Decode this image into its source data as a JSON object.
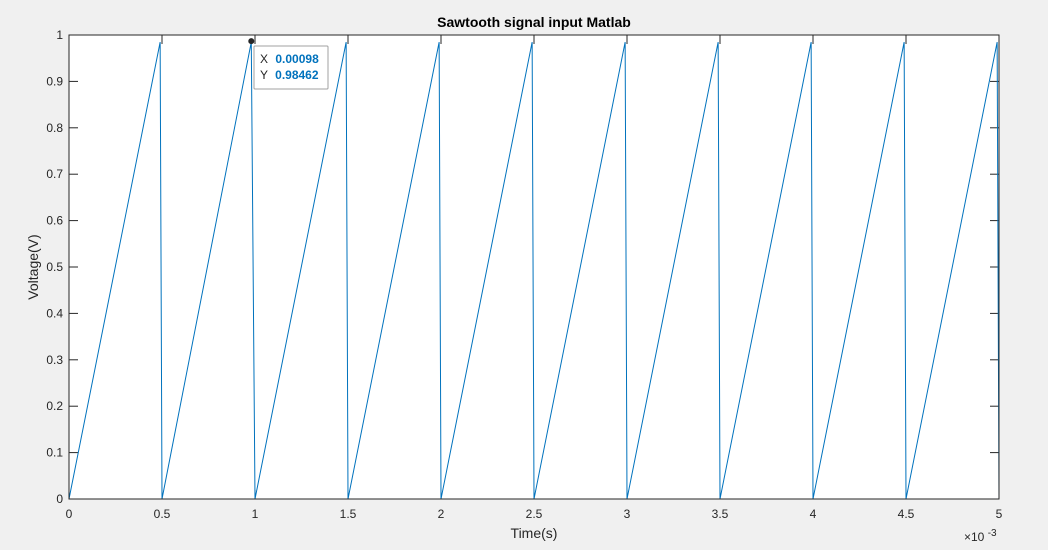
{
  "chart_data": {
    "type": "line",
    "title": "Sawtooth signal input Matlab",
    "xlabel": "Time(s)",
    "ylabel": "Voltage(V)",
    "x_exponent_label": "×10",
    "x_exponent_power": "-3",
    "xlim": [
      0,
      0.005
    ],
    "ylim": [
      0,
      1
    ],
    "x_tick_labels": [
      "0",
      "0.5",
      "1",
      "1.5",
      "2",
      "2.5",
      "3",
      "3.5",
      "4",
      "4.5",
      "5"
    ],
    "y_tick_labels": [
      "0",
      "0.1",
      "0.2",
      "0.3",
      "0.4",
      "0.5",
      "0.6",
      "0.7",
      "0.8",
      "0.9",
      "1"
    ],
    "grid": false,
    "line_color": "#0072bd",
    "period": 0.0005,
    "peak": 0.98462,
    "series": [
      {
        "x": [
          0,
          0.00049,
          0.0005,
          0.00098,
          0.001,
          0.00149,
          0.0015,
          0.00199,
          0.002,
          0.00249,
          0.0025,
          0.00299,
          0.003,
          0.00349,
          0.0035,
          0.00399,
          0.004,
          0.00449,
          0.0045,
          0.00499,
          0.005
        ],
        "y": [
          0,
          0.98462,
          0,
          0.98462,
          0,
          0.98462,
          0,
          0.98462,
          0,
          0.98462,
          0,
          0.98462,
          0,
          0.98462,
          0,
          0.98462,
          0,
          0.98462,
          0,
          0.98462,
          0
        ]
      }
    ],
    "datatip": {
      "x_label": "X",
      "x_value": "0.00098",
      "y_label": "Y",
      "y_value": "0.98462",
      "point_x": 0.00098,
      "point_y": 0.98462
    }
  }
}
